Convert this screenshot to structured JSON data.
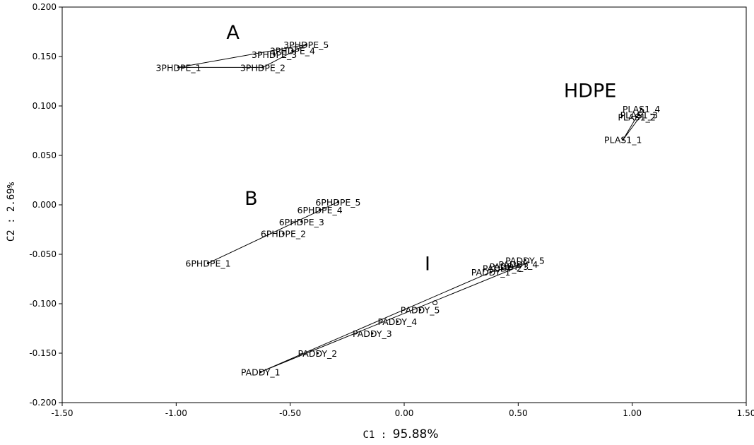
{
  "chart_data": {
    "type": "scatter",
    "xlabel": {
      "prefix": "C1 : ",
      "value": "95.88%"
    },
    "ylabel": "C2 :  2.69%",
    "xlim": [
      -1.5,
      1.5
    ],
    "ylim": [
      -0.2,
      0.2
    ],
    "x_ticks": [
      "-1.50",
      "-1.00",
      "-0.50",
      "0.00",
      "0.50",
      "1.00",
      "1.50"
    ],
    "y_ticks": [
      "0.200",
      "0.150",
      "0.100",
      "0.050",
      "0.000",
      "-0.050",
      "-0.100",
      "-0.150",
      "-0.200"
    ],
    "grid": false,
    "group_labels": [
      {
        "text": "A",
        "x": -0.78,
        "y": 0.168
      },
      {
        "text": "B",
        "x": -0.7,
        "y": 0.0
      },
      {
        "text": "HDPE",
        "x": 0.7,
        "y": 0.109
      },
      {
        "text": "I",
        "x": 0.09,
        "y": -0.066
      }
    ],
    "points": [
      {
        "label": "3PHDPE_1",
        "x": -0.99,
        "y": 0.139
      },
      {
        "label": "3PHDPE_2",
        "x": -0.62,
        "y": 0.139
      },
      {
        "label": "3PHDPE_3",
        "x": -0.57,
        "y": 0.152
      },
      {
        "label": "3PHDPE_4",
        "x": -0.49,
        "y": 0.156
      },
      {
        "label": "3PHDPE_5",
        "x": -0.43,
        "y": 0.162
      },
      {
        "label": "6PHDPE_1",
        "x": -0.86,
        "y": -0.059
      },
      {
        "label": "6PHDPE_2",
        "x": -0.53,
        "y": -0.029
      },
      {
        "label": "6PHDPE_3",
        "x": -0.45,
        "y": -0.017
      },
      {
        "label": "6PHDPE_4",
        "x": -0.37,
        "y": -0.005
      },
      {
        "label": "6PHDPE_5",
        "x": -0.29,
        "y": 0.003
      },
      {
        "label": "PADDY_1",
        "x": -0.63,
        "y": -0.169
      },
      {
        "label": "PADDY_2",
        "x": -0.38,
        "y": -0.15
      },
      {
        "label": "PADDY_3",
        "x": -0.14,
        "y": -0.13
      },
      {
        "label": "PADDY_4",
        "x": -0.03,
        "y": -0.118
      },
      {
        "label": "PADDY_5",
        "x": 0.07,
        "y": -0.106
      },
      {
        "label": "PADDY_1",
        "x": 0.38,
        "y": -0.068
      },
      {
        "label": "PADDY_2",
        "x": 0.43,
        "y": -0.064
      },
      {
        "label": "PADDY_3",
        "x": 0.46,
        "y": -0.062
      },
      {
        "label": "PADDY_4",
        "x": 0.5,
        "y": -0.06
      },
      {
        "label": "PADDY_5",
        "x": 0.53,
        "y": -0.056
      },
      {
        "label": "PLAS1_1",
        "x": 0.96,
        "y": 0.066
      },
      {
        "label": "PLAS1_2",
        "x": 1.02,
        "y": 0.089
      },
      {
        "label": "PLAS1_3",
        "x": 1.03,
        "y": 0.091
      },
      {
        "label": "PLAS1_4",
        "x": 1.04,
        "y": 0.097
      }
    ],
    "hulls": [
      [
        [
          -0.99,
          0.139
        ],
        [
          -0.43,
          0.162
        ],
        [
          -0.62,
          0.139
        ]
      ],
      [
        [
          -0.86,
          -0.059
        ],
        [
          -0.29,
          0.003
        ]
      ],
      [
        [
          -0.63,
          -0.169
        ],
        [
          0.55,
          -0.058
        ],
        [
          0.38,
          -0.068
        ]
      ],
      [
        [
          0.96,
          0.066
        ],
        [
          1.04,
          0.097
        ],
        [
          1.05,
          0.094
        ]
      ]
    ],
    "centroid_markers": [
      {
        "x": 0.135,
        "y": -0.099
      }
    ]
  }
}
